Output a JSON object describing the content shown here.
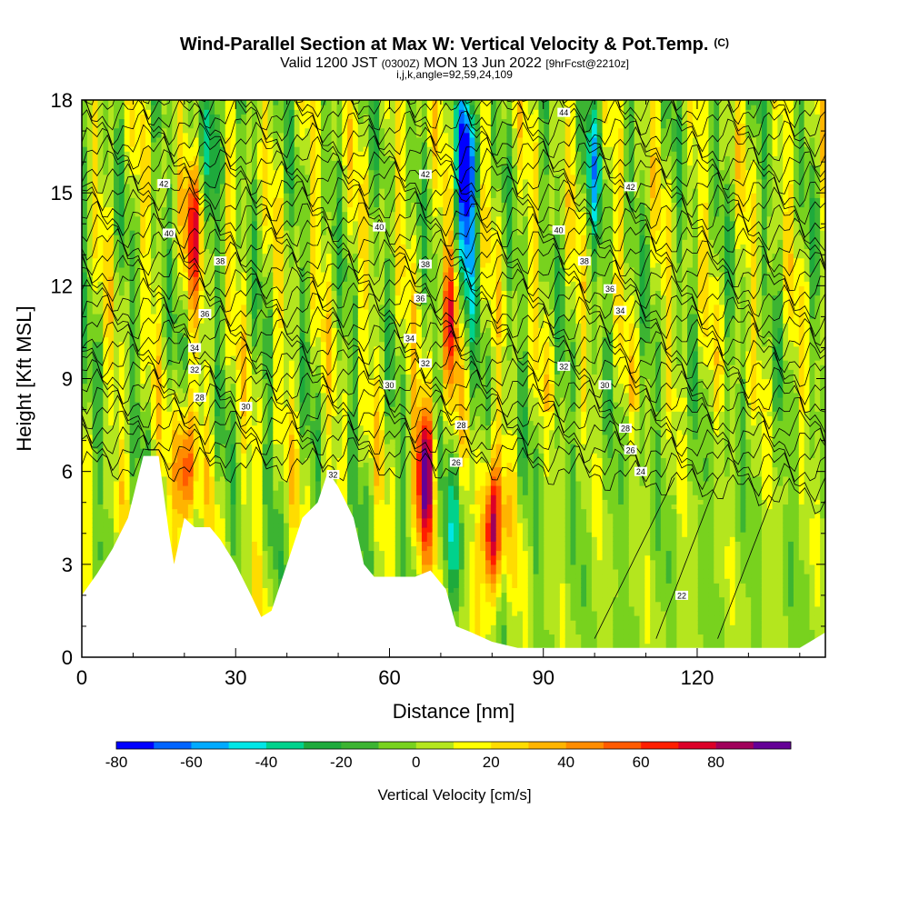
{
  "title": "Wind-Parallel Section at Max W: Vertical Velocity & Pot.Temp.",
  "copyright": "(C)",
  "valid": "Valid 1200 JST",
  "valid_z": "(0300Z)",
  "date": "MON 13 Jun 2022",
  "forecast": "[9hrFcst@2210z]",
  "indices": "i,j,k,angle=92,59,24,109",
  "chart_data": {
    "type": "heatmap",
    "xlabel": "Distance [nm]",
    "ylabel": "Height [Kft MSL]",
    "xlim": [
      0,
      145
    ],
    "ylim": [
      0,
      18
    ],
    "xticks": [
      0,
      30,
      60,
      90,
      120
    ],
    "yticks": [
      0,
      3,
      6,
      9,
      12,
      15,
      18
    ],
    "colorbar": {
      "label": "Vertical Velocity [cm/s]",
      "ticks": [
        -80,
        -60,
        -40,
        -20,
        0,
        20,
        40,
        60,
        80
      ],
      "levels": [
        -80,
        -70,
        -60,
        -50,
        -40,
        -30,
        -20,
        -10,
        0,
        10,
        20,
        30,
        40,
        50,
        60,
        70,
        80,
        90
      ],
      "colors": [
        "#0000ff",
        "#0064ff",
        "#00aaff",
        "#00e6e6",
        "#00d28c",
        "#1eaa3c",
        "#3cb432",
        "#78d21e",
        "#b4e61e",
        "#ffff00",
        "#ffdc00",
        "#ffb400",
        "#ff8c00",
        "#ff5a00",
        "#ff1e00",
        "#dc0028",
        "#a0005a",
        "#640096"
      ]
    },
    "contour_labels": [
      "42",
      "40",
      "38",
      "36",
      "34",
      "32",
      "30",
      "28",
      "26",
      "24",
      "22"
    ],
    "terrain_kft": [
      [
        0,
        2
      ],
      [
        3,
        2.7
      ],
      [
        6,
        3.5
      ],
      [
        9,
        4.5
      ],
      [
        12,
        6.5
      ],
      [
        15,
        6.5
      ],
      [
        17,
        4
      ],
      [
        18,
        3
      ],
      [
        20,
        4.5
      ],
      [
        22,
        4.2
      ],
      [
        25,
        4.2
      ],
      [
        27,
        3.8
      ],
      [
        30,
        3
      ],
      [
        33,
        2
      ],
      [
        35,
        1.3
      ],
      [
        37,
        1.5
      ],
      [
        40,
        3
      ],
      [
        43,
        4.5
      ],
      [
        46,
        5
      ],
      [
        48,
        6
      ],
      [
        50,
        5.5
      ],
      [
        53,
        4.5
      ],
      [
        55,
        3
      ],
      [
        57,
        2.6
      ],
      [
        62,
        2.6
      ],
      [
        65,
        2.6
      ],
      [
        68,
        2.8
      ],
      [
        71,
        2.2
      ],
      [
        73,
        1
      ],
      [
        76,
        0.8
      ],
      [
        80,
        0.5
      ],
      [
        85,
        0.3
      ],
      [
        90,
        0.3
      ],
      [
        100,
        0.3
      ],
      [
        120,
        0.3
      ],
      [
        140,
        0.3
      ],
      [
        145,
        0.8
      ]
    ],
    "cells": [
      {
        "x": 67,
        "y": 6,
        "w": 90
      },
      {
        "x": 80,
        "y": 4,
        "w": 90
      },
      {
        "x": 20,
        "y": 6,
        "w": 65
      },
      {
        "x": 22,
        "y": 14,
        "w": 55
      },
      {
        "x": 72,
        "y": 11,
        "w": 55
      },
      {
        "x": 75,
        "y": 16,
        "w": -80
      },
      {
        "x": 75,
        "y": 13,
        "w": -45
      },
      {
        "x": 73,
        "y": 4,
        "w": -30
      },
      {
        "x": 26,
        "y": 17,
        "w": -40
      },
      {
        "x": 100,
        "y": 16,
        "w": -35
      }
    ]
  }
}
